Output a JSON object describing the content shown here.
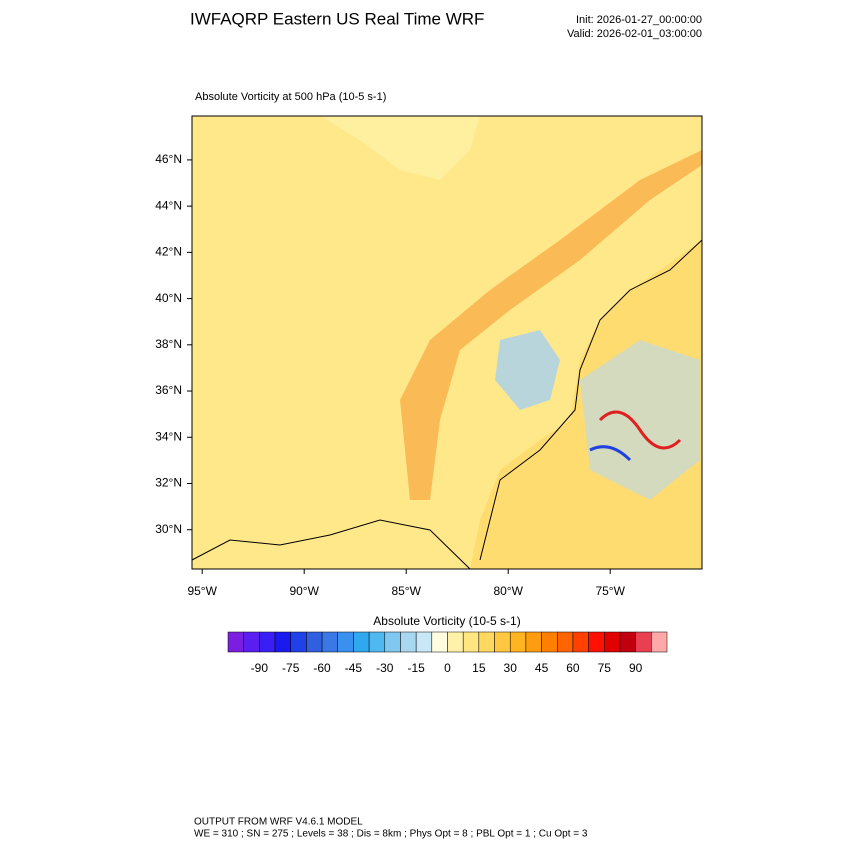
{
  "header": {
    "title": "IWFAQRP Eastern US Real Time WRF",
    "init": "Init: 2026-01-27_00:00:00",
    "valid": "Valid: 2026-02-01_03:00:00"
  },
  "panel": {
    "title": "Absolute Vorticity at 500 hPa   (10-5 s-1)",
    "xlim": [
      -95.5,
      -70.5
    ],
    "ylim": [
      28.3,
      47.9
    ],
    "xticks": [
      {
        "value": -95,
        "label": "95°W"
      },
      {
        "value": -90,
        "label": "90°W"
      },
      {
        "value": -85,
        "label": "85°W"
      },
      {
        "value": -80,
        "label": "80°W"
      },
      {
        "value": -75,
        "label": "75°W"
      }
    ],
    "yticks": [
      {
        "value": 30,
        "label": "30°N"
      },
      {
        "value": 32,
        "label": "32°N"
      },
      {
        "value": 34,
        "label": "34°N"
      },
      {
        "value": 36,
        "label": "36°N"
      },
      {
        "value": 38,
        "label": "38°N"
      },
      {
        "value": 40,
        "label": "40°N"
      },
      {
        "value": 42,
        "label": "42°N"
      },
      {
        "value": 44,
        "label": "44°N"
      },
      {
        "value": 46,
        "label": "46°N"
      }
    ]
  },
  "colorbar": {
    "title": "Absolute Vorticity  (10-5 s-1)",
    "range": [
      -105,
      105
    ],
    "ticks": [
      -90,
      -75,
      -60,
      -45,
      -30,
      -15,
      0,
      15,
      30,
      45,
      60,
      75,
      90
    ],
    "colors": [
      "#7a1fe0",
      "#5a1ff0",
      "#3a1ff5",
      "#1a1af0",
      "#2040e8",
      "#3060e0",
      "#3a78e6",
      "#3a90ee",
      "#30a8f0",
      "#50b8f0",
      "#80c8f0",
      "#a8d8f0",
      "#c8e8f8",
      "#fffce0",
      "#fff2a8",
      "#ffe680",
      "#ffd860",
      "#ffc840",
      "#ffb420",
      "#ff9c10",
      "#ff8000",
      "#ff6400",
      "#ff4000",
      "#ff1000",
      "#e00000",
      "#c00010",
      "#e84050",
      "#ffa8a8"
    ]
  },
  "footer": {
    "line1": "OUTPUT FROM WRF V4.6.1 MODEL",
    "line2": "WE = 310 ; SN = 275 ; Levels = 38 ; Dis = 8km ; Phys Opt = 8 ; PBL Opt = 1 ; Cu Opt = 3"
  }
}
